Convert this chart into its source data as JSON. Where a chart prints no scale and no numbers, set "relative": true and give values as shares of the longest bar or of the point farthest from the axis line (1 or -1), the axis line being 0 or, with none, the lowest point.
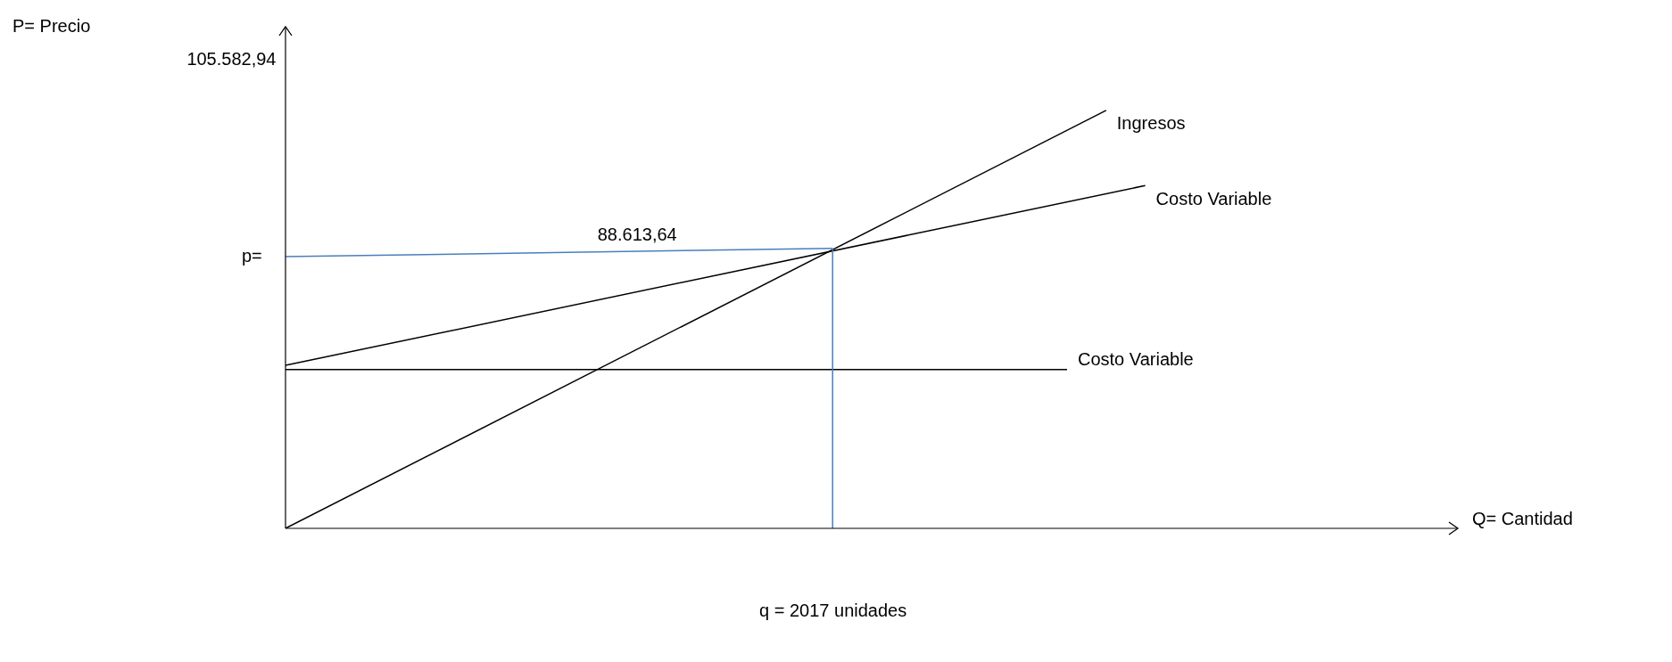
{
  "chart_data": {
    "type": "line",
    "relative": true,
    "xlabel": "Q= Cantidad",
    "marker": "none",
    "categories": [
      null,
      null,
      null,
      null,
      null,
      null,
      null,
      null,
      null,
      null,
      null,
      null,
      null,
      null,
      null,
      null,
      null,
      null,
      null,
      null,
      null,
      null,
      null,
      null,
      null,
      null,
      null,
      null,
      null,
      null,
      null
    ],
    "series": [
      {
        "name": "Ingresos",
        "color": "#000000",
        "values": [
          0,
          null,
          null,
          null,
          null,
          null,
          null,
          null,
          null,
          null,
          null,
          null,
          null,
          null,
          null,
          null,
          null,
          null,
          null,
          null,
          null,
          1,
          null,
          null,
          null,
          null,
          null,
          null,
          null,
          null,
          null
        ]
      },
      {
        "name": "Costo Variable",
        "color": "#000000",
        "values": [
          0.39,
          null,
          null,
          null,
          null,
          null,
          null,
          null,
          null,
          null,
          null,
          null,
          null,
          null,
          null,
          null,
          null,
          null,
          null,
          null,
          null,
          null,
          0.82,
          null,
          null,
          null,
          null,
          null,
          null,
          null,
          null
        ]
      },
      {
        "name": "Costo Variable",
        "color": "#000000",
        "values": [
          0.38,
          null,
          null,
          null,
          null,
          null,
          null,
          null,
          null,
          null,
          null,
          null,
          null,
          null,
          null,
          null,
          null,
          null,
          null,
          null,
          0.38,
          null,
          null,
          null,
          null,
          null,
          null,
          null,
          null,
          null,
          null
        ]
      },
      {
        "color": "#4a7ebb",
        "values": [
          0.65,
          null,
          null,
          null,
          null,
          null,
          null,
          null,
          null,
          null,
          null,
          null,
          null,
          null,
          0.67,
          null,
          null,
          null,
          null,
          null,
          null,
          null,
          null,
          null,
          null,
          null,
          null,
          null,
          null,
          null,
          null
        ]
      }
    ],
    "annotations": [
      "P= Precio",
      "105.582,94",
      "p=",
      "88.613,64",
      "q = 2017 unidades"
    ]
  }
}
